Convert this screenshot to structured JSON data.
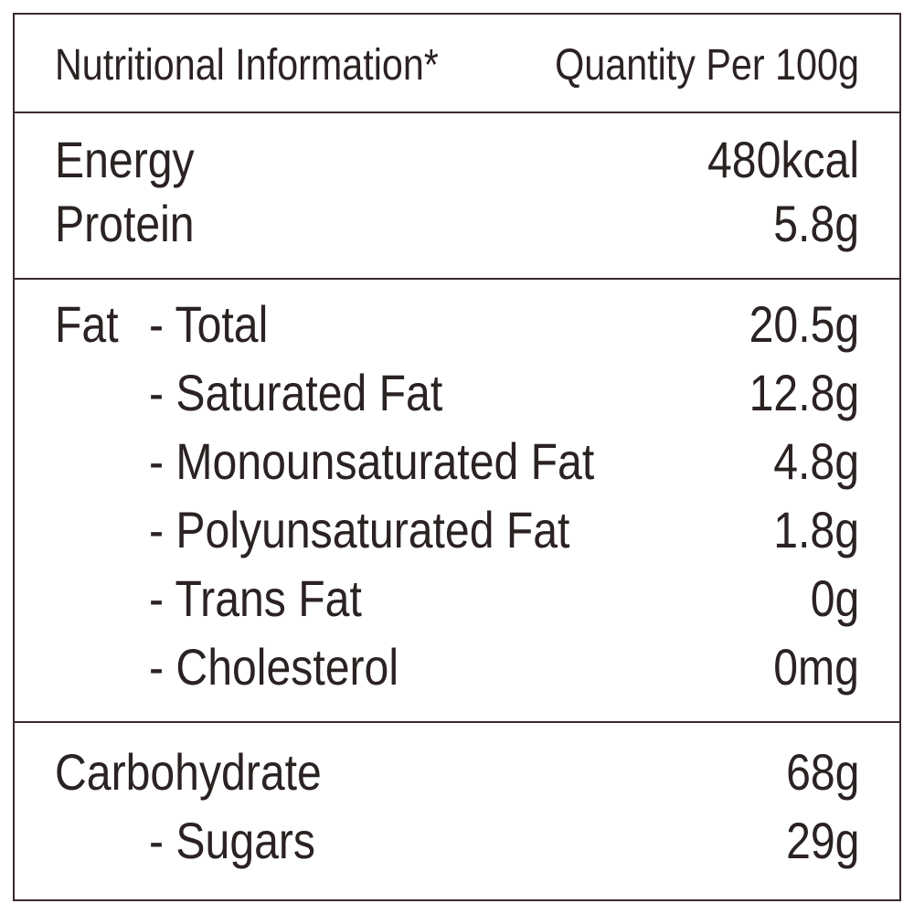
{
  "header": {
    "label": "Nutritional Information*",
    "quantity": "Quantity Per 100g"
  },
  "sections": [
    {
      "rows": [
        {
          "label": "Energy",
          "value": "480kcal"
        },
        {
          "label": "Protein",
          "value": "5.8g"
        }
      ]
    },
    {
      "rows": [
        {
          "label": "Fat",
          "sublabel": "- Total",
          "value": "20.5g"
        },
        {
          "sublabel": "- Saturated Fat",
          "value": "12.8g"
        },
        {
          "sublabel": "- Monounsaturated Fat",
          "value": "4.8g"
        },
        {
          "sublabel": "- Polyunsaturated Fat",
          "value": "1.8g"
        },
        {
          "sublabel": "- Trans Fat",
          "value": "0g"
        },
        {
          "sublabel": "- Cholesterol",
          "value": "0mg"
        }
      ]
    },
    {
      "rows": [
        {
          "label": "Carbohydrate",
          "value": "68g"
        },
        {
          "sublabel": "- Sugars",
          "value": "29g"
        }
      ]
    }
  ]
}
